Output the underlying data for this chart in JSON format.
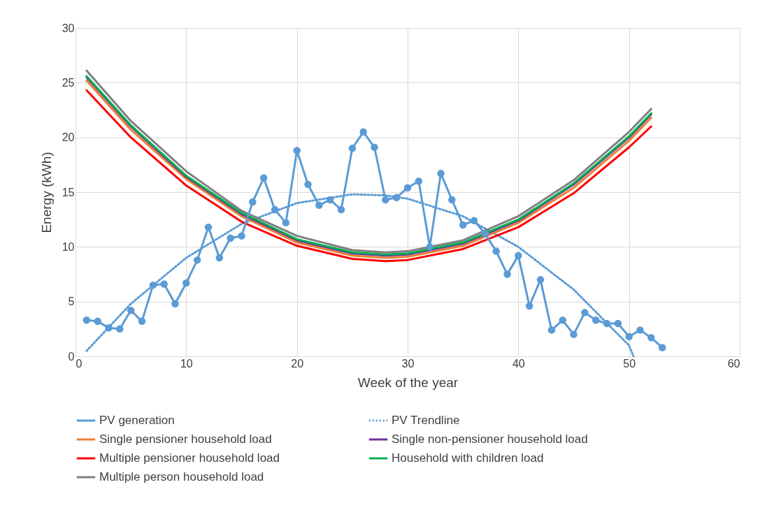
{
  "chart_data": {
    "type": "line",
    "xlabel": "Week of the year",
    "ylabel": "Energy (kWh)",
    "xlim": [
      0,
      60
    ],
    "xticks": [
      0,
      10,
      20,
      30,
      40,
      50,
      60
    ],
    "ylim": [
      0,
      30
    ],
    "yticks": [
      0,
      5,
      10,
      15,
      20,
      25,
      30
    ],
    "grid": true,
    "legend": "bottom",
    "series": [
      {
        "name": "PV generation",
        "color": "#5b9bd5",
        "marker": "circle",
        "x": [
          1,
          2,
          3,
          4,
          5,
          6,
          7,
          8,
          9,
          10,
          11,
          12,
          13,
          14,
          15,
          16,
          17,
          18,
          19,
          20,
          21,
          22,
          23,
          24,
          25,
          26,
          27,
          28,
          29,
          30,
          31,
          32,
          33,
          34,
          35,
          36,
          37,
          38,
          39,
          40,
          41,
          42,
          43,
          44,
          45,
          46,
          47,
          48,
          49,
          50,
          51,
          52,
          53
        ],
        "values": [
          3.3,
          3.2,
          2.6,
          2.5,
          4.2,
          3.2,
          6.5,
          6.6,
          4.8,
          6.7,
          8.8,
          11.8,
          9.0,
          10.8,
          11.0,
          14.1,
          16.3,
          13.4,
          12.2,
          18.8,
          15.7,
          13.8,
          14.3,
          13.4,
          19.0,
          20.5,
          19.1,
          14.3,
          14.5,
          15.4,
          16.0,
          10.0,
          16.7,
          14.3,
          12.0,
          12.4,
          11.2,
          9.6,
          7.5,
          9.2,
          4.6,
          7.0,
          2.4,
          3.3,
          2.0,
          4.0,
          3.3,
          3.0,
          3.0,
          1.8,
          2.4,
          1.7,
          0.8
        ]
      },
      {
        "name": "PV Trendline",
        "color": "#5b9bd5",
        "line_style": "dotted",
        "x": [
          1,
          5,
          10,
          15,
          20,
          25,
          28,
          30,
          35,
          40,
          45,
          50,
          50.4
        ],
        "values": [
          0.5,
          4.8,
          9.0,
          12.1,
          14.0,
          14.8,
          14.7,
          14.4,
          12.8,
          10.0,
          6.1,
          1.0,
          0.0
        ]
      },
      {
        "name": "Single pensioner household load",
        "color": "#ed7d31",
        "x": [
          1,
          5,
          10,
          15,
          20,
          25,
          28,
          30,
          35,
          40,
          45,
          50,
          52
        ],
        "values": [
          25.2,
          20.7,
          16.2,
          12.8,
          10.4,
          9.2,
          9.0,
          9.1,
          10.1,
          12.2,
          15.4,
          19.7,
          21.8
        ]
      },
      {
        "name": "Single non-pensioner household load",
        "color": "#7030a0",
        "x": [
          1,
          5,
          10,
          15,
          20,
          25,
          28,
          30,
          35,
          40,
          45,
          50,
          52
        ],
        "values": [
          25.5,
          21.0,
          16.4,
          13.0,
          10.6,
          9.4,
          9.2,
          9.3,
          10.3,
          12.4,
          15.7,
          20.0,
          22.1
        ]
      },
      {
        "name": "Multiple pensioner household load",
        "color": "#ff0000",
        "x": [
          1,
          5,
          10,
          15,
          20,
          25,
          28,
          30,
          35,
          40,
          45,
          50,
          52
        ],
        "values": [
          24.3,
          20.0,
          15.6,
          12.3,
          10.1,
          8.9,
          8.7,
          8.8,
          9.8,
          11.8,
          14.9,
          19.1,
          21.0
        ]
      },
      {
        "name": "Household with children load",
        "color": "#00b050",
        "x": [
          1,
          5,
          10,
          15,
          20,
          25,
          28,
          30,
          35,
          40,
          45,
          50,
          52
        ],
        "values": [
          25.6,
          21.1,
          16.5,
          13.1,
          10.7,
          9.5,
          9.3,
          9.4,
          10.4,
          12.5,
          15.8,
          20.1,
          22.2
        ]
      },
      {
        "name": "Multiple person household load",
        "color": "#7f7f7f",
        "x": [
          1,
          5,
          10,
          15,
          20,
          25,
          28,
          30,
          35,
          40,
          45,
          50,
          52
        ],
        "values": [
          26.1,
          21.5,
          16.9,
          13.3,
          11.0,
          9.7,
          9.5,
          9.6,
          10.6,
          12.8,
          16.1,
          20.5,
          22.6
        ]
      }
    ]
  }
}
